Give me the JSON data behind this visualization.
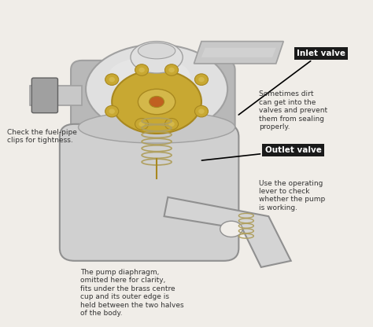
{
  "background_color": "#f0ede8",
  "silver": "#c8c8c8",
  "silver_light": "#e0e0e0",
  "silver_dark": "#a0a0a0",
  "silver_mid": "#b8b8b8",
  "brass": "#c8a832",
  "brass_light": "#d4b84a",
  "brass_dark": "#a88820",
  "spring_color": "#b0a060",
  "inlet_valve_label": "Inlet valve",
  "outlet_valve_label": "Outlet valve",
  "text_dirt": "Sometimes dirt\ncan get into the\nvalves and prevent\nthem from sealing\nproperly.",
  "text_clip": "Check the fuel-pipe\nclips for tightness.",
  "text_lever": "Use the operating\nlever to check\nwhether the pump\nis working.",
  "text_diaphragm": "The pump diaphragm,\nomitted here for clarity,\nfits under the brass centre\ncup and its outer edge is\nheld between the two halves\nof the body.",
  "label_box_color": "#1a1a1a",
  "label_text_color": "#ffffff",
  "annotation_text_color": "#333333",
  "annotation_fontsize": 6.5,
  "label_fontsize": 7.5
}
